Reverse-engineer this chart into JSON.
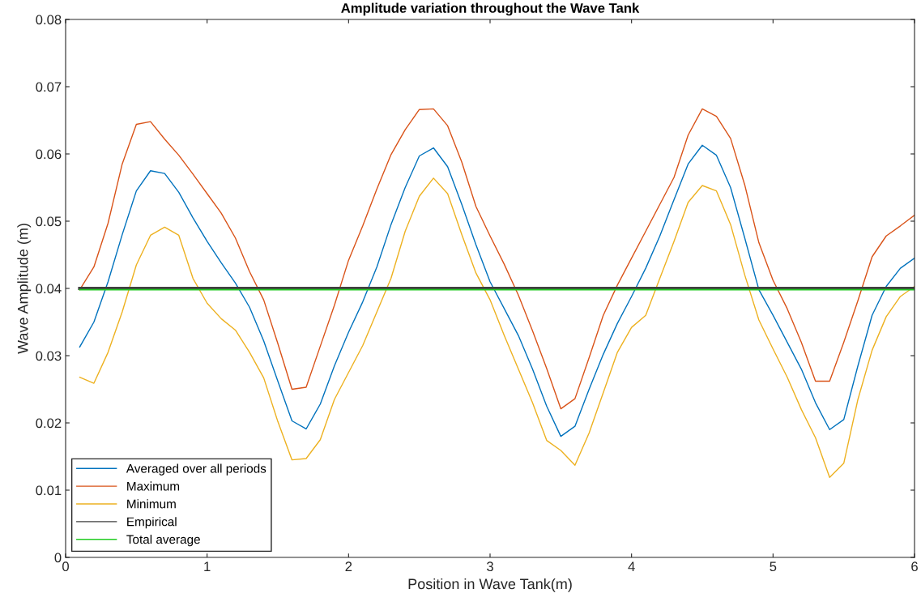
{
  "chart_data": {
    "type": "line",
    "title": "Amplitude variation throughout the Wave Tank",
    "xlabel": "Position in Wave Tank(m)",
    "ylabel": "Wave Amplitude (m)",
    "x": [
      0.1,
      0.2,
      0.3,
      0.4,
      0.5,
      0.6,
      0.7,
      0.8,
      0.9,
      1.0,
      1.1,
      1.2,
      1.3,
      1.4,
      1.5,
      1.6,
      1.7,
      1.8,
      1.9,
      2.0,
      2.1,
      2.2,
      2.3,
      2.4,
      2.5,
      2.6,
      2.7,
      2.8,
      2.9,
      3.0,
      3.1,
      3.2,
      3.3,
      3.4,
      3.5,
      3.6,
      3.7,
      3.8,
      3.9,
      4.0,
      4.1,
      4.2,
      4.3,
      4.4,
      4.5,
      4.6,
      4.7,
      4.8,
      4.9,
      5.0,
      5.1,
      5.2,
      5.3,
      5.4,
      5.5,
      5.6,
      5.7,
      5.8,
      5.9,
      6.0
    ],
    "series": [
      {
        "name": "Averaged over all periods",
        "color": "#0072bd",
        "values": [
          0.0313,
          0.035,
          0.041,
          0.048,
          0.0545,
          0.0575,
          0.0571,
          0.0543,
          0.0505,
          0.047,
          0.0438,
          0.0408,
          0.0372,
          0.0322,
          0.0262,
          0.0203,
          0.0191,
          0.0228,
          0.0285,
          0.0335,
          0.038,
          0.0432,
          0.0495,
          0.055,
          0.0597,
          0.0609,
          0.0581,
          0.0525,
          0.0465,
          0.041,
          0.037,
          0.033,
          0.028,
          0.0225,
          0.018,
          0.0195,
          0.025,
          0.0302,
          0.0348,
          0.0388,
          0.043,
          0.0478,
          0.0532,
          0.0585,
          0.0613,
          0.0598,
          0.055,
          0.0475,
          0.0398,
          0.036,
          0.032,
          0.028,
          0.023,
          0.019,
          0.0205,
          0.0285,
          0.036,
          0.0403,
          0.043,
          0.0445
        ]
      },
      {
        "name": "Maximum",
        "color": "#d95319",
        "values": [
          0.0398,
          0.0432,
          0.0497,
          0.0585,
          0.0644,
          0.0648,
          0.0622,
          0.0598,
          0.057,
          0.0541,
          0.0512,
          0.0475,
          0.0425,
          0.0383,
          0.0318,
          0.025,
          0.0253,
          0.0314,
          0.0375,
          0.0442,
          0.0493,
          0.0548,
          0.0599,
          0.0636,
          0.0666,
          0.0667,
          0.0642,
          0.0588,
          0.0522,
          0.0478,
          0.0436,
          0.039,
          0.0337,
          0.0281,
          0.0221,
          0.0236,
          0.0297,
          0.036,
          0.0405,
          0.0445,
          0.0485,
          0.0525,
          0.0565,
          0.0628,
          0.0667,
          0.0656,
          0.0623,
          0.0554,
          0.0468,
          0.0412,
          0.037,
          0.032,
          0.0262,
          0.0262,
          0.032,
          0.0382,
          0.0447,
          0.0478,
          0.0493,
          0.0509
        ]
      },
      {
        "name": "Minimum",
        "color": "#edb120",
        "values": [
          0.0268,
          0.0259,
          0.0305,
          0.0365,
          0.0435,
          0.0479,
          0.0491,
          0.0479,
          0.0415,
          0.0378,
          0.0355,
          0.0338,
          0.0305,
          0.0267,
          0.0202,
          0.0145,
          0.0147,
          0.0175,
          0.0235,
          0.0275,
          0.0315,
          0.0365,
          0.0415,
          0.0485,
          0.0537,
          0.0564,
          0.0541,
          0.048,
          0.0423,
          0.0383,
          0.033,
          0.028,
          0.023,
          0.0174,
          0.0159,
          0.0137,
          0.0185,
          0.0245,
          0.0305,
          0.0342,
          0.036,
          0.0415,
          0.047,
          0.0528,
          0.0553,
          0.0545,
          0.0495,
          0.042,
          0.0353,
          0.031,
          0.0268,
          0.022,
          0.0178,
          0.0119,
          0.014,
          0.0235,
          0.0308,
          0.0358,
          0.0388,
          0.0403
        ]
      },
      {
        "name": "Empirical",
        "color": "#404040",
        "values": [
          0.04,
          0.04,
          0.04,
          0.04,
          0.04,
          0.04,
          0.04,
          0.04,
          0.04,
          0.04,
          0.04,
          0.04,
          0.04,
          0.04,
          0.04,
          0.04,
          0.04,
          0.04,
          0.04,
          0.04,
          0.04,
          0.04,
          0.04,
          0.04,
          0.04,
          0.04,
          0.04,
          0.04,
          0.04,
          0.04,
          0.04,
          0.04,
          0.04,
          0.04,
          0.04,
          0.04,
          0.04,
          0.04,
          0.04,
          0.04,
          0.04,
          0.04,
          0.04,
          0.04,
          0.04,
          0.04,
          0.04,
          0.04,
          0.04,
          0.04,
          0.04,
          0.04,
          0.04,
          0.04,
          0.04,
          0.04,
          0.04,
          0.04,
          0.04,
          0.04
        ]
      },
      {
        "name": "Total average",
        "color": "#22cc22",
        "values": [
          0.0398,
          0.0398,
          0.0398,
          0.0398,
          0.0398,
          0.0398,
          0.0398,
          0.0398,
          0.0398,
          0.0398,
          0.0398,
          0.0398,
          0.0398,
          0.0398,
          0.0398,
          0.0398,
          0.0398,
          0.0398,
          0.0398,
          0.0398,
          0.0398,
          0.0398,
          0.0398,
          0.0398,
          0.0398,
          0.0398,
          0.0398,
          0.0398,
          0.0398,
          0.0398,
          0.0398,
          0.0398,
          0.0398,
          0.0398,
          0.0398,
          0.0398,
          0.0398,
          0.0398,
          0.0398,
          0.0398,
          0.0398,
          0.0398,
          0.0398,
          0.0398,
          0.0398,
          0.0398,
          0.0398,
          0.0398,
          0.0398,
          0.0398,
          0.0398,
          0.0398,
          0.0398,
          0.0398,
          0.0398,
          0.0398,
          0.0398,
          0.0398,
          0.0398,
          0.0398
        ]
      }
    ],
    "xlim": [
      0,
      6
    ],
    "xticks": [
      0,
      1,
      2,
      3,
      4,
      5,
      6
    ],
    "ylim": [
      0,
      0.08
    ],
    "yticks": [
      0,
      0.01,
      0.02,
      0.03,
      0.04,
      0.05,
      0.06,
      0.07,
      0.08
    ],
    "grid": false,
    "legend": "bottom left"
  }
}
